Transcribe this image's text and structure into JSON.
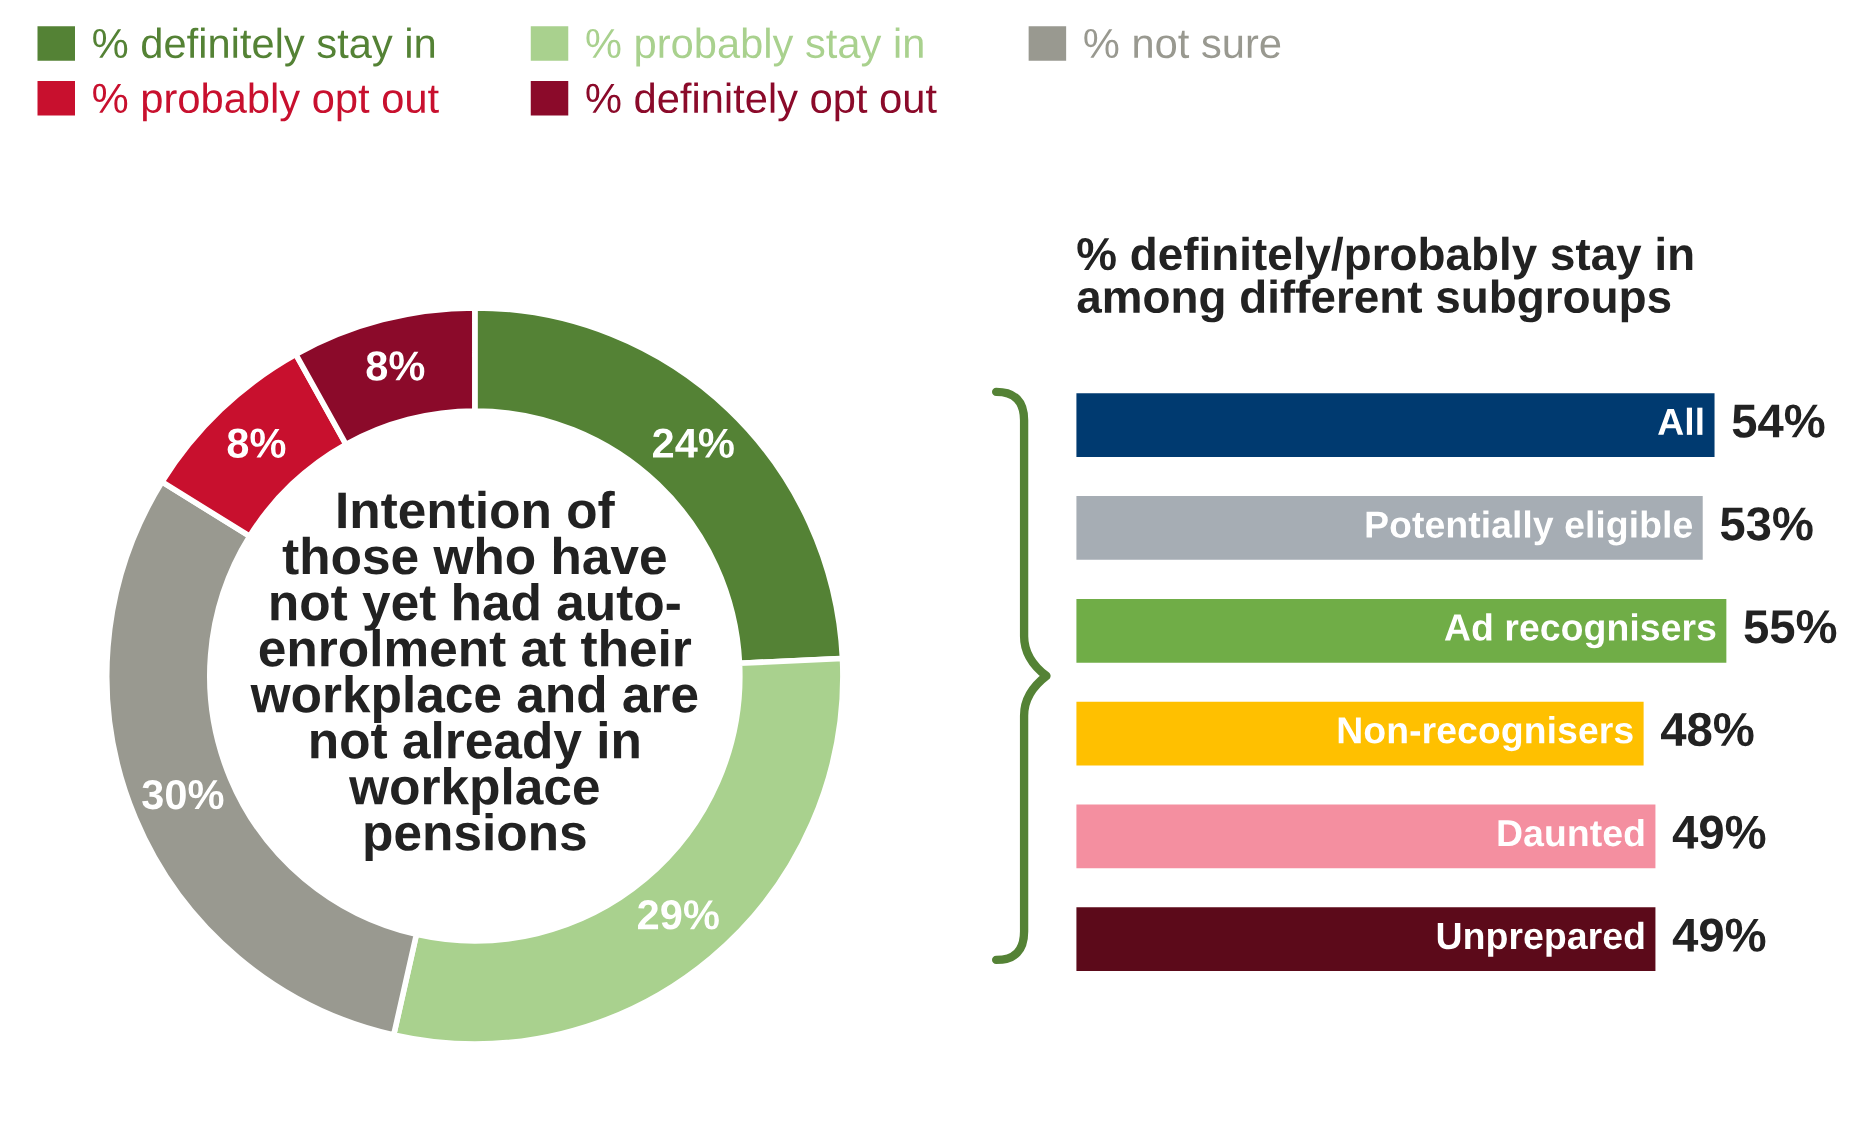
{
  "chart_data": [
    {
      "type": "donut",
      "title": "Intention of\nthose who have\nnot yet had auto-\nenrolment at their\nworkplace and are\nnot already in\nworkplace\npensions",
      "categories": [
        "% definitely stay in",
        "% probably stay in",
        "% not sure",
        "% probably opt out",
        "% definitely opt out"
      ],
      "values": [
        24,
        29,
        30,
        8,
        8
      ],
      "colors": [
        "#548235",
        "#a9d18e",
        "#999990",
        "#c8102e",
        "#8b0a2a"
      ],
      "value_labels": [
        "24%",
        "29%",
        "30%",
        "8%",
        "8%"
      ],
      "legend": "top"
    },
    {
      "type": "bar",
      "orientation": "horizontal",
      "title": "% definitely/probably stay in\namong different subgroups",
      "categories": [
        "All",
        "Potentially eligible",
        "Ad recognisers",
        "Non-recognisers",
        "Daunted",
        "Unprepared"
      ],
      "values": [
        54,
        53,
        55,
        48,
        49,
        49
      ],
      "colors": [
        "#003a70",
        "#a6adb4",
        "#70ad47",
        "#ffc000",
        "#f48fa0",
        "#5c0a1a"
      ],
      "value_labels": [
        "54%",
        "53%",
        "55%",
        "48%",
        "49%",
        "49%"
      ]
    }
  ]
}
